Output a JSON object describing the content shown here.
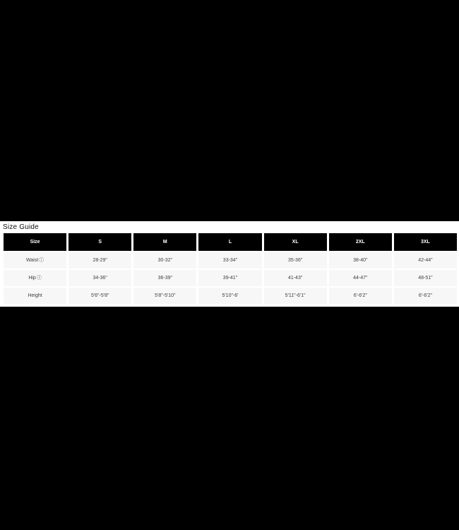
{
  "panel": {
    "title": "Size Guide"
  },
  "table": {
    "columns": [
      "Size",
      "S",
      "M",
      "L",
      "XL",
      "2XL",
      "3XL"
    ],
    "rows": [
      {
        "label": "Waist",
        "has_info_icon": true,
        "values": [
          "28-29\"",
          "30-32\"",
          "33-34\"",
          "35-36\"",
          "38-40\"",
          "42-44\""
        ]
      },
      {
        "label": "Hip",
        "has_info_icon": true,
        "values": [
          "34-36\"",
          "36-39\"",
          "39-41\"",
          "41-43\"",
          "44-47\"",
          "48-51\""
        ]
      },
      {
        "label": "Height",
        "has_info_icon": false,
        "values": [
          "5'6\"-5'8\"",
          "5'8\"-5'10\"",
          "5'10\"-6'",
          "5'11\"-6'1\"",
          "6'-6'2\"",
          "6'-6'2\""
        ]
      }
    ]
  },
  "icons": {
    "info": "ⓘ"
  },
  "colors": {
    "page_background": "#000000",
    "panel_background": "#ffffff",
    "header_cell_background": "#000000",
    "header_text": "#ffffff",
    "body_cell_background": "#f7f7f7",
    "body_text": "#3d3d3d",
    "title_text": "#111111"
  }
}
